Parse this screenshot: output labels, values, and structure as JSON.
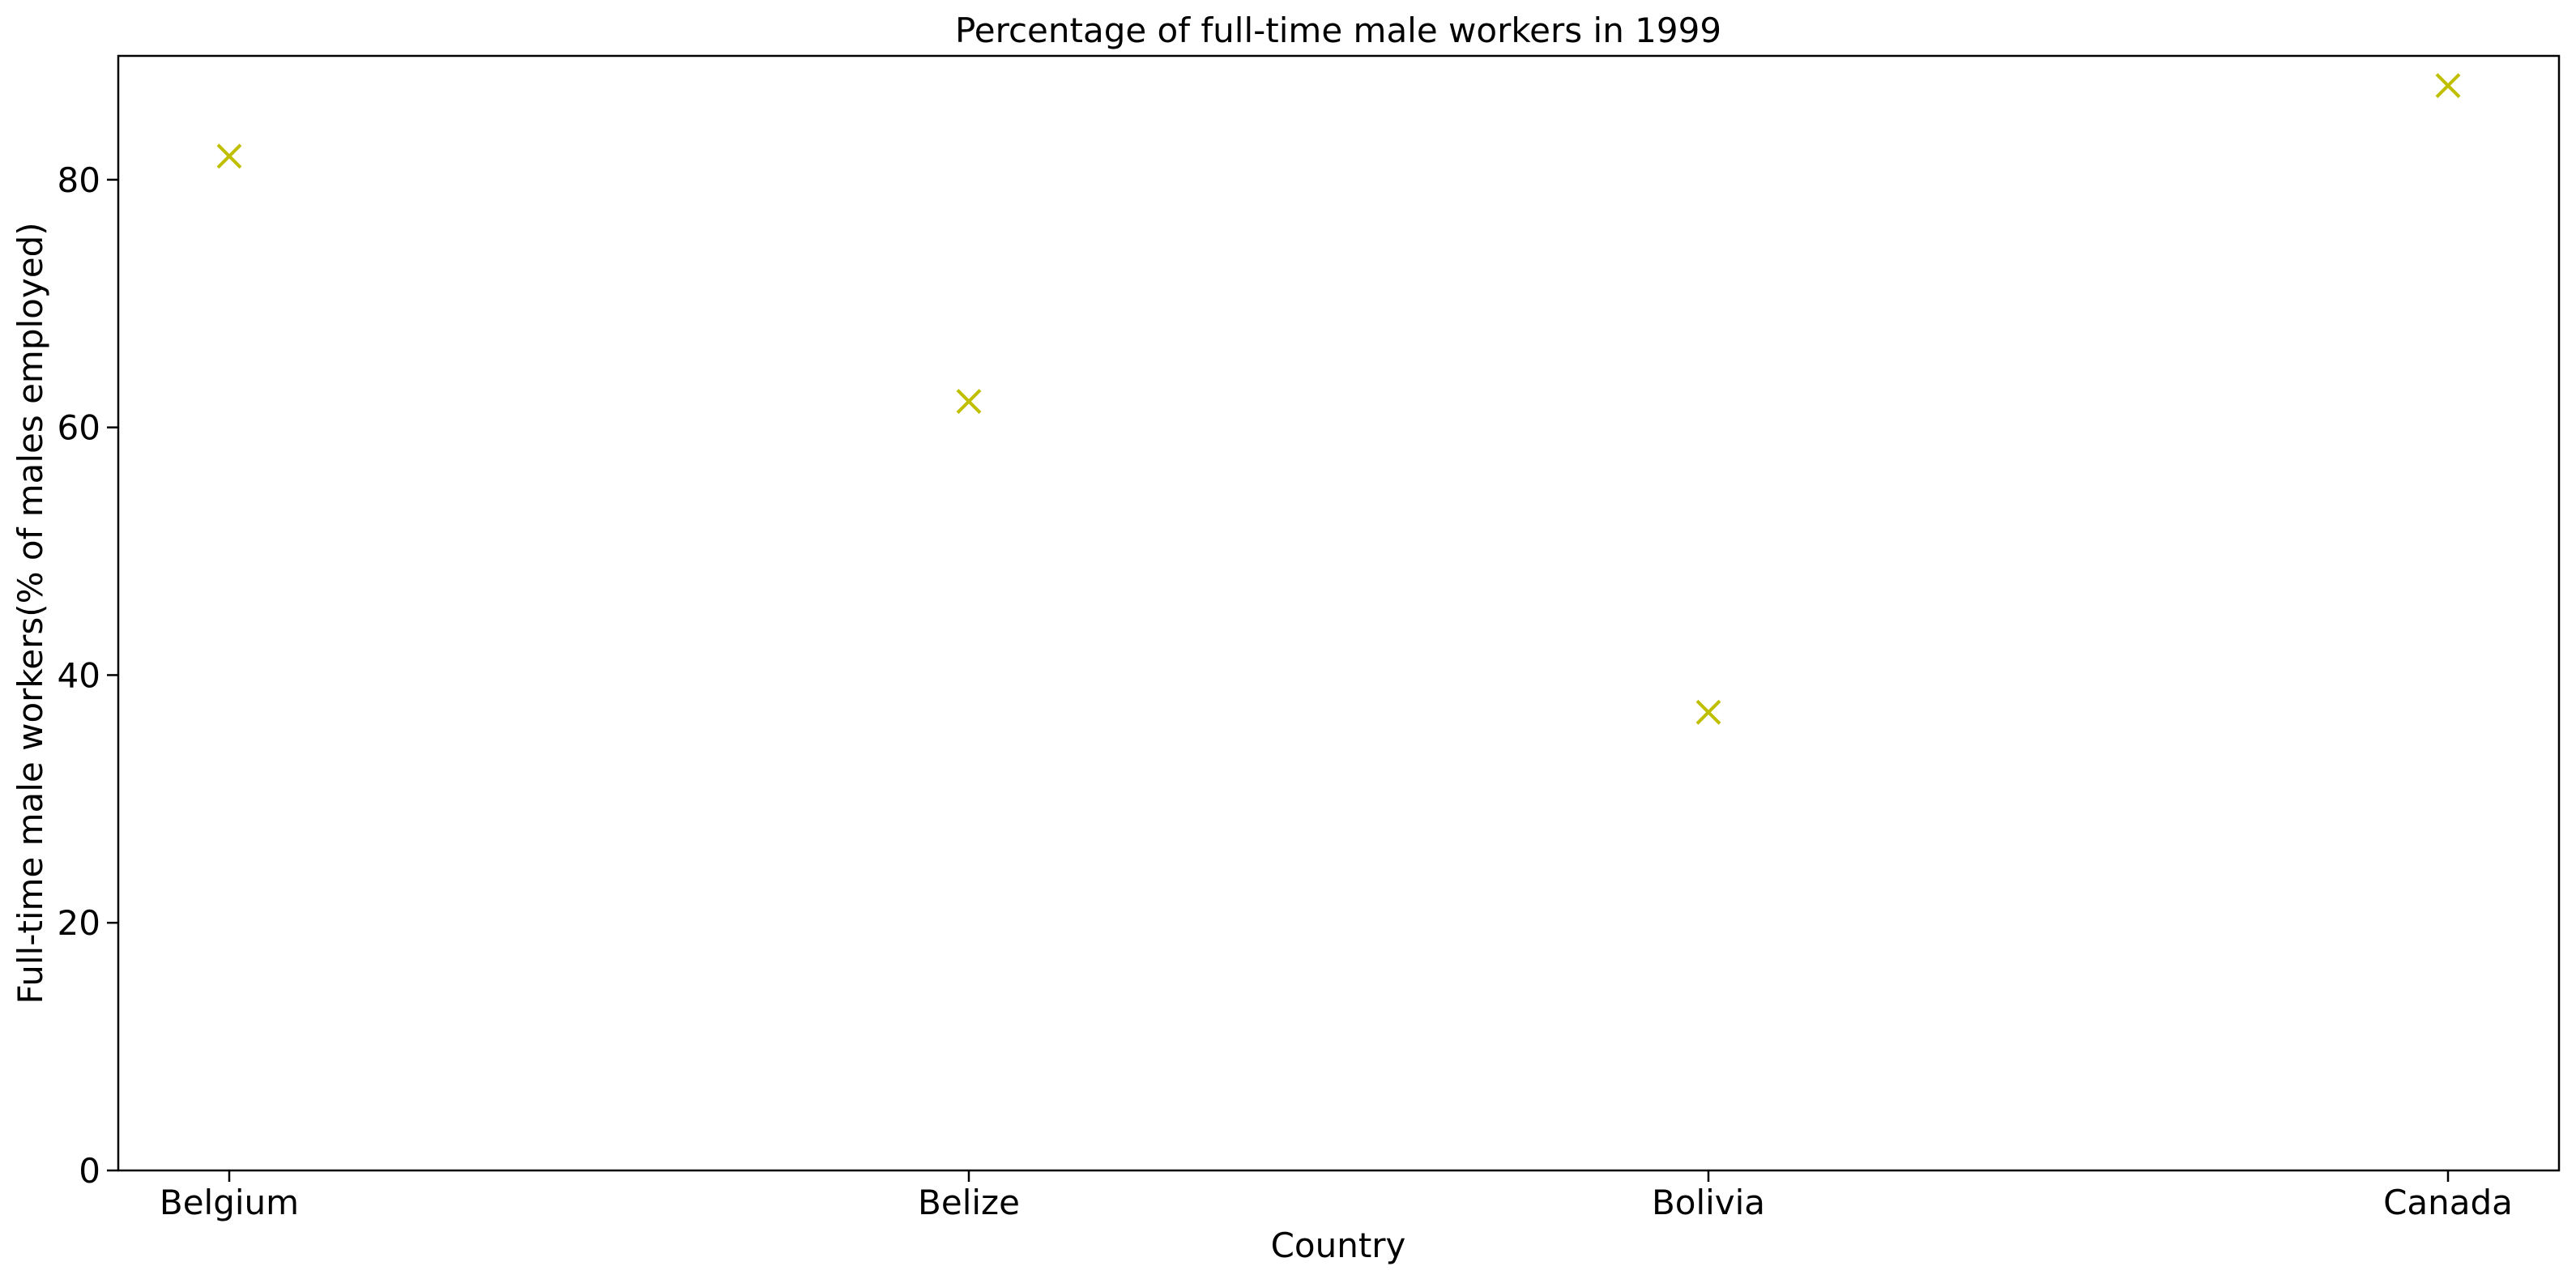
{
  "chart_data": {
    "type": "scatter",
    "title": "Percentage of full-time male workers in 1999",
    "xlabel": "Country",
    "ylabel": "Full-time male workers(% of males employed)",
    "categories": [
      "Belgium",
      "Belize",
      "Bolivia",
      "Canada"
    ],
    "series": [
      {
        "values": [
          81.9,
          62.1,
          37.0,
          87.6
        ],
        "color": "#bfbf00",
        "marker": "x"
      }
    ],
    "ylim": [
      0,
      90
    ],
    "yticks": [
      0,
      20,
      40,
      60,
      80
    ],
    "grid": false,
    "legend": false
  }
}
